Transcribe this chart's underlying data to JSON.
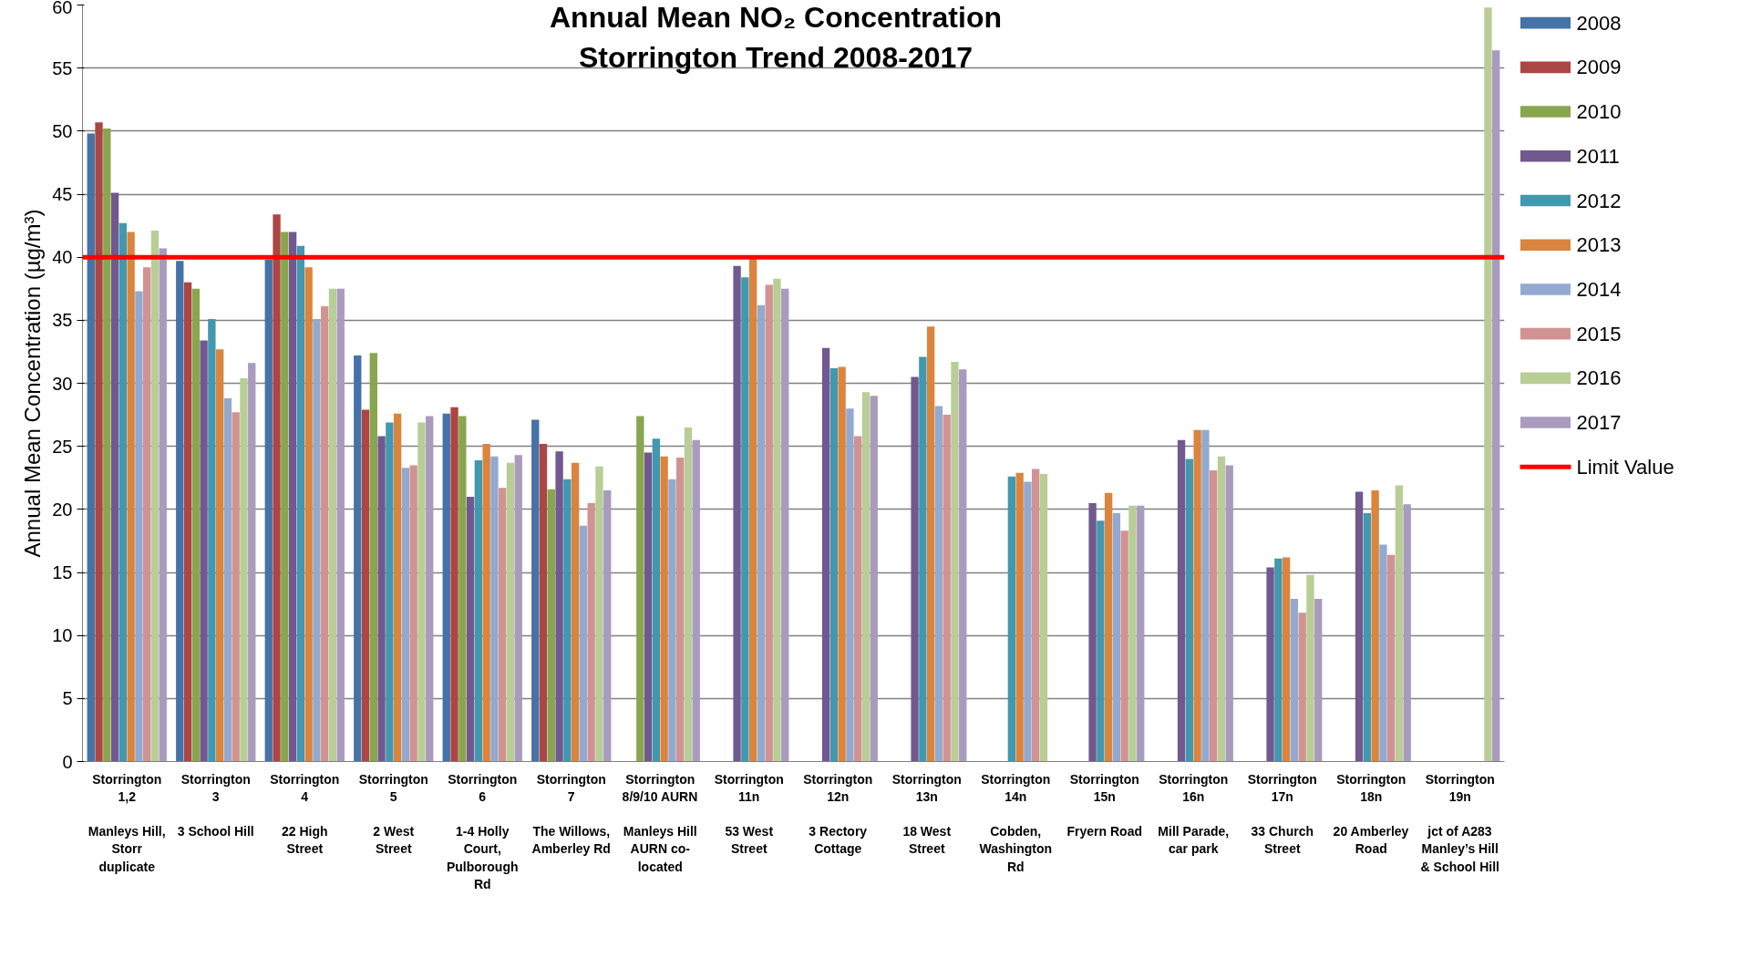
{
  "chart_data": {
    "type": "bar",
    "title": "Annual Mean NO₂ Concentration\nStorrington Trend 2008-2017",
    "ylabel": "Annual Mean Concentration (µg/m³)",
    "categories": [
      "Storrington\n1,2\n\nManleys Hill,\nStorr\nduplicate",
      "Storrington\n3\n\n3 School Hill",
      "Storrington\n4\n\n22 High\nStreet",
      "Storrington\n5\n\n2 West\nStreet",
      "Storrington\n6\n\n1-4 Holly\nCourt,\nPulborough\nRd",
      "Storrington\n7\n\nThe Willows,\nAmberley Rd",
      "Storrington\n8/9/10 AURN\n\nManleys Hill\nAURN co-\nlocated",
      "Storrington\n11n\n\n53 West\nStreet",
      "Storrington\n12n\n\n3 Rectory\nCottage",
      "Storrington\n13n\n\n18 West\nStreet",
      "Storrington\n14n\n\nCobden,\nWashington\nRd",
      "Storrington\n15n\n\nFryern Road",
      "Storrington\n16n\n\nMill Parade,\ncar park",
      "Storrington\n17n\n\n33 Church\nStreet",
      "Storrington\n18n\n\n20 Amberley\nRoad",
      "Storrington\n19n\n\njct of A283\nManley’s Hill\n& School Hill"
    ],
    "series": [
      {
        "name": "2008",
        "color": "#4572a7",
        "values": [
          49.8,
          39.7,
          39.8,
          32.2,
          27.6,
          27.1,
          null,
          null,
          null,
          null,
          null,
          null,
          null,
          null,
          null,
          null
        ]
      },
      {
        "name": "2009",
        "color": "#aa4643",
        "values": [
          50.7,
          38.0,
          43.4,
          27.9,
          28.1,
          25.2,
          null,
          null,
          null,
          null,
          null,
          null,
          null,
          null,
          null,
          null
        ]
      },
      {
        "name": "2010",
        "color": "#89a54e",
        "values": [
          50.2,
          37.5,
          42.0,
          32.4,
          27.4,
          21.6,
          27.4,
          null,
          null,
          null,
          null,
          null,
          null,
          null,
          null,
          null
        ]
      },
      {
        "name": "2011",
        "color": "#71588f",
        "values": [
          45.1,
          33.4,
          42.0,
          25.8,
          21.0,
          24.6,
          24.5,
          39.3,
          32.8,
          30.5,
          null,
          20.5,
          25.5,
          15.4,
          21.4,
          null
        ]
      },
      {
        "name": "2012",
        "color": "#4198af",
        "values": [
          42.7,
          35.1,
          40.9,
          26.9,
          23.9,
          22.4,
          25.6,
          38.4,
          31.2,
          32.1,
          22.6,
          19.1,
          24.0,
          16.1,
          19.7,
          null
        ]
      },
      {
        "name": "2013",
        "color": "#db843d",
        "values": [
          42.0,
          32.7,
          39.2,
          27.6,
          25.2,
          23.7,
          24.2,
          40.0,
          31.3,
          34.5,
          22.9,
          21.3,
          26.3,
          16.2,
          21.5,
          null
        ]
      },
      {
        "name": "2014",
        "color": "#93a9cf",
        "values": [
          37.3,
          28.8,
          35.1,
          23.3,
          24.2,
          18.7,
          22.4,
          36.2,
          28.0,
          28.2,
          22.2,
          19.7,
          26.3,
          12.9,
          17.2,
          null
        ]
      },
      {
        "name": "2015",
        "color": "#d19392",
        "values": [
          39.2,
          27.7,
          36.1,
          23.5,
          21.7,
          20.5,
          24.1,
          37.8,
          25.8,
          27.5,
          23.2,
          18.3,
          23.1,
          11.8,
          16.4,
          null
        ]
      },
      {
        "name": "2016",
        "color": "#b9cd96",
        "values": [
          42.1,
          30.4,
          37.5,
          26.9,
          23.7,
          23.4,
          26.5,
          38.3,
          29.3,
          31.7,
          22.8,
          20.3,
          24.2,
          14.8,
          21.9,
          59.8
        ]
      },
      {
        "name": "2017",
        "color": "#a99bbd",
        "values": [
          40.7,
          31.6,
          37.5,
          27.4,
          24.3,
          21.5,
          25.5,
          37.5,
          29.0,
          31.1,
          null,
          20.3,
          23.5,
          12.9,
          20.4,
          56.4
        ]
      }
    ],
    "ylim": [
      0,
      60
    ],
    "yticks": [
      0,
      5,
      10,
      15,
      20,
      25,
      30,
      35,
      40,
      45,
      50,
      55,
      60
    ],
    "grid": "y",
    "legend": "right",
    "ref_lines": [
      {
        "axis": "y",
        "value": 40,
        "label": "Limit Value",
        "color": "#ff0000"
      }
    ]
  }
}
